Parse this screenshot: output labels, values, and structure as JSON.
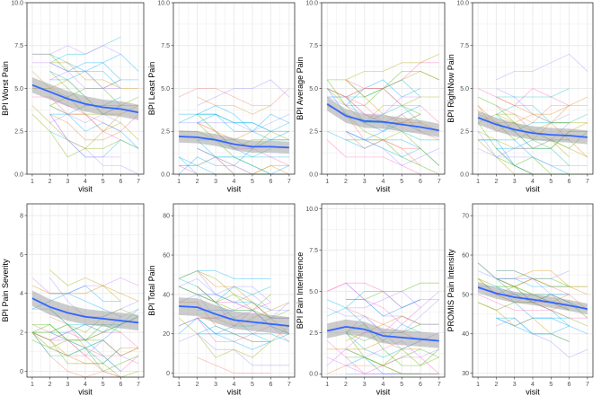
{
  "chart_data": [
    {
      "type": "line",
      "ylabel": "BPI Worst Pain",
      "xlabel": "visit",
      "x": [
        1,
        2,
        3,
        4,
        5,
        6,
        7
      ],
      "ylim": [
        0,
        10
      ],
      "yticks": [
        "0.0",
        "2.5",
        "5.0",
        "7.5",
        "10.0"
      ],
      "ytick_values": [
        0,
        2.5,
        5,
        7.5,
        10
      ],
      "trend": [
        5.2,
        4.8,
        4.4,
        4.1,
        3.9,
        3.8,
        3.6
      ],
      "band": 0.45,
      "spread": 2.2
    },
    {
      "type": "line",
      "ylabel": "BPI Least Pain",
      "xlabel": "visit",
      "x": [
        1,
        2,
        3,
        4,
        5,
        6,
        7
      ],
      "ylim": [
        0,
        10
      ],
      "yticks": [
        "0.0",
        "2.5",
        "5.0",
        "7.5",
        "10.0"
      ],
      "ytick_values": [
        0,
        2.5,
        5,
        7.5,
        10
      ],
      "trend": [
        2.2,
        2.15,
        2.0,
        1.75,
        1.6,
        1.6,
        1.55
      ],
      "band": 0.35,
      "spread": 2.0
    },
    {
      "type": "line",
      "ylabel": "BPI Average Pain",
      "xlabel": "visit",
      "x": [
        1,
        2,
        3,
        4,
        5,
        6,
        7
      ],
      "ylim": [
        0,
        10
      ],
      "yticks": [
        "0.0",
        "2.5",
        "5.0",
        "7.5",
        "10.0"
      ],
      "ytick_values": [
        0,
        2.5,
        5,
        7.5,
        10
      ],
      "trend": [
        4.1,
        3.4,
        3.1,
        3.05,
        2.9,
        2.75,
        2.55
      ],
      "band": 0.4,
      "spread": 2.1
    },
    {
      "type": "line",
      "ylabel": "BPI RightNow Pain",
      "xlabel": "visit",
      "x": [
        1,
        2,
        3,
        4,
        5,
        6,
        7
      ],
      "ylim": [
        0,
        10
      ],
      "yticks": [
        "0.0",
        "2.5",
        "5.0",
        "7.5",
        "10.0"
      ],
      "ytick_values": [
        0,
        2.5,
        5,
        7.5,
        10
      ],
      "trend": [
        3.3,
        2.9,
        2.6,
        2.4,
        2.3,
        2.25,
        2.15
      ],
      "band": 0.4,
      "spread": 2.2
    },
    {
      "type": "line",
      "ylabel": "BPI Pain Severity",
      "xlabel": "visit",
      "x": [
        1,
        2,
        3,
        4,
        5,
        6,
        7
      ],
      "ylim": [
        -0.3,
        8.6
      ],
      "yticks": [
        "0",
        "2",
        "4",
        "6",
        "8"
      ],
      "ytick_values": [
        0,
        2,
        4,
        6,
        8
      ],
      "trend": [
        3.75,
        3.3,
        3.0,
        2.8,
        2.7,
        2.6,
        2.5
      ],
      "band": 0.4,
      "spread": 1.8
    },
    {
      "type": "line",
      "ylabel": "BPI Total Pain",
      "xlabel": "visit",
      "x": [
        1,
        2,
        3,
        4,
        5,
        6,
        7
      ],
      "ylim": [
        -2,
        86
      ],
      "yticks": [
        "0",
        "20",
        "40",
        "60",
        "80"
      ],
      "ytick_values": [
        0,
        20,
        40,
        60,
        80
      ],
      "trend": [
        34,
        33.5,
        30,
        27,
        26,
        25,
        24
      ],
      "band": 4.5,
      "spread": 18
    },
    {
      "type": "line",
      "ylabel": "BPI Pain Interference",
      "xlabel": "visit",
      "x": [
        1,
        2,
        3,
        4,
        5,
        6,
        7
      ],
      "ylim": [
        -0.2,
        10.3
      ],
      "yticks": [
        "0.0",
        "2.5",
        "5.0",
        "7.5",
        "10.0"
      ],
      "ytick_values": [
        0,
        2.5,
        5,
        7.5,
        10
      ],
      "trend": [
        2.6,
        2.85,
        2.7,
        2.3,
        2.2,
        2.1,
        2.0
      ],
      "band": 0.45,
      "spread": 2.4
    },
    {
      "type": "line",
      "ylabel": "PROMIS Pain Intensity",
      "xlabel": "visit",
      "x": [
        1,
        2,
        3,
        4,
        5,
        6,
        7
      ],
      "ylim": [
        29,
        73
      ],
      "yticks": [
        "30",
        "40",
        "50",
        "60",
        "70"
      ],
      "ytick_values": [
        30,
        40,
        50,
        60,
        70
      ],
      "trend": [
        51.8,
        50.3,
        49.3,
        48.7,
        48.0,
        47.2,
        46.3
      ],
      "band": 1.4,
      "spread": 6.5
    }
  ],
  "colors": {
    "trend": "#3366ff",
    "band": "#999999",
    "grid": "#ebebeb",
    "border": "#333333",
    "tick_text": "#4d4d4d",
    "palette": [
      "#f8766d",
      "#7cae00",
      "#00bfc4",
      "#c77cff",
      "#e7861b",
      "#00a9ff",
      "#d89000",
      "#39b600",
      "#ff62bc",
      "#00b0f6",
      "#a3a500",
      "#9590ff"
    ]
  }
}
